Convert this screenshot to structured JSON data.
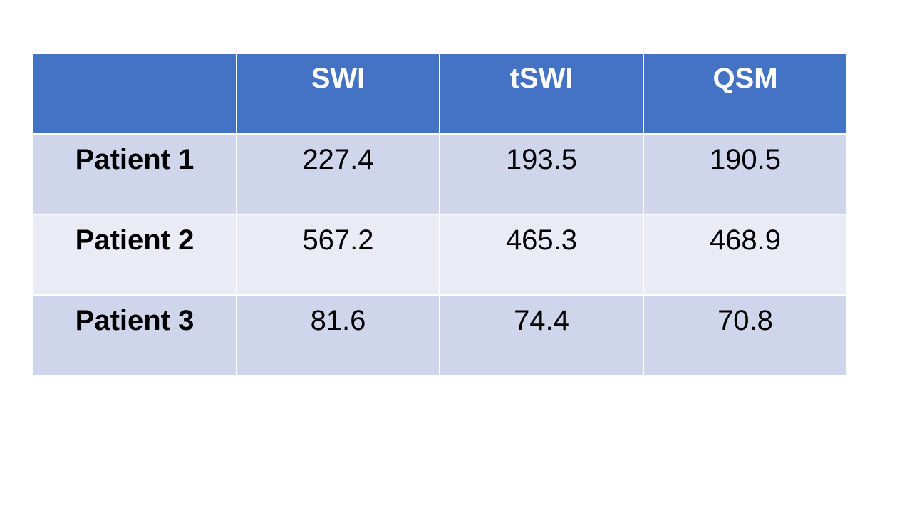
{
  "table": {
    "header": [
      "SWI",
      "tSWI",
      "QSM"
    ],
    "rows": [
      {
        "label": "Patient 1",
        "values": [
          227.4,
          193.5,
          190.5
        ]
      },
      {
        "label": "Patient 2",
        "values": [
          567.2,
          465.3,
          468.9
        ]
      },
      {
        "label": "Patient 3",
        "values": [
          81.6,
          74.4,
          70.8
        ]
      }
    ]
  }
}
